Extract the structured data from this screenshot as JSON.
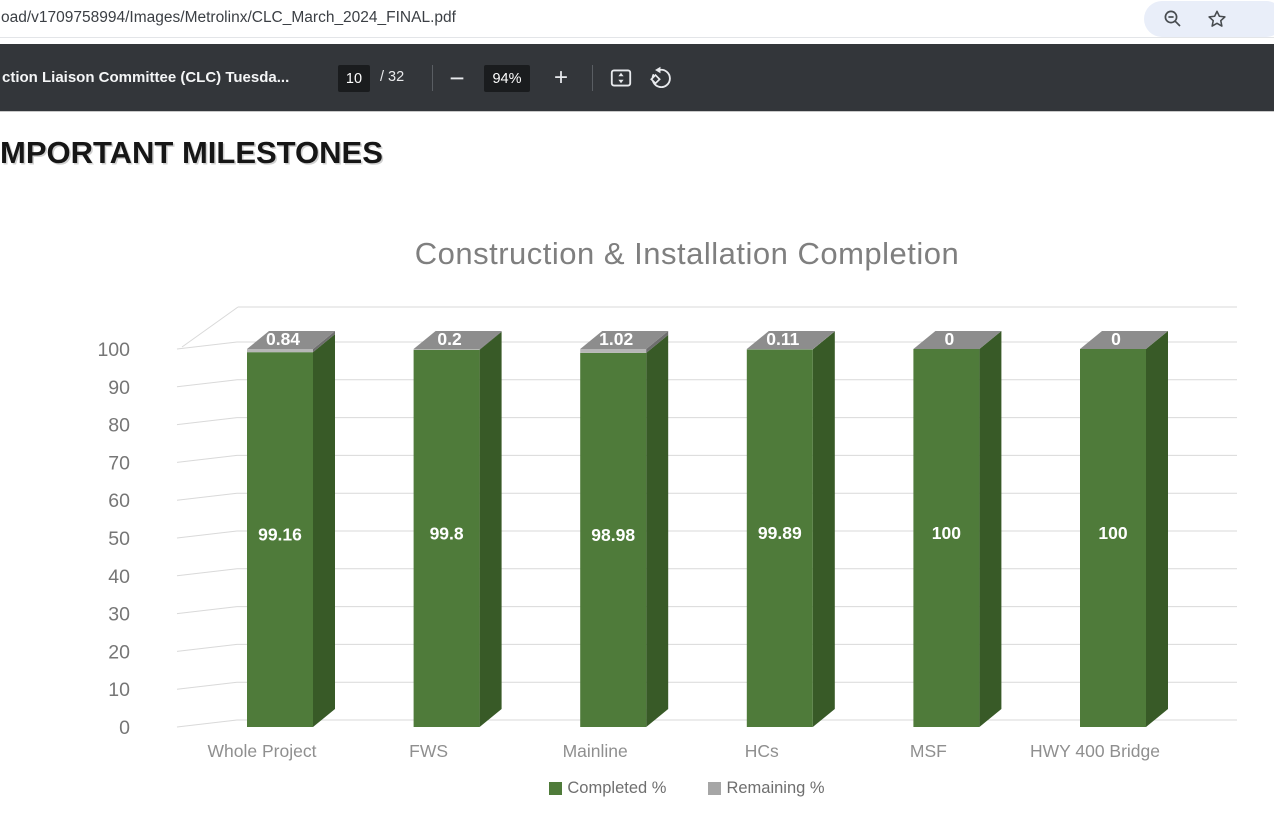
{
  "browser": {
    "url_text": "oad/v1709758994/Images/Metrolinx/CLC_March_2024_FINAL.pdf",
    "icons": [
      "zoom-out-icon",
      "bookmark-star-icon"
    ]
  },
  "pdf_toolbar": {
    "document_title": "ction Liaison Committee (CLC) Tuesda...",
    "page_current": "10",
    "page_total": "/ 32",
    "minus_label": "−",
    "zoom_level": "94%",
    "plus_label": "+",
    "icons": [
      "page-fit-icon",
      "rotate-ccw-icon"
    ]
  },
  "page": {
    "heading": "MPORTANT MILESTONES"
  },
  "chart_data": {
    "type": "bar",
    "variant": "3d-stacked-column",
    "title": "Construction & Installation Completion",
    "categories": [
      "Whole Project",
      "FWS",
      "Mainline",
      "HCs",
      "MSF",
      "HWY 400 Bridge"
    ],
    "series": [
      {
        "name": "Completed %",
        "color": "#4f7b3a",
        "values": [
          99.16,
          99.8,
          98.98,
          99.89,
          100,
          100
        ]
      },
      {
        "name": "Remaining %",
        "color": "#a6a6a6",
        "values": [
          0.84,
          0.2,
          1.02,
          0.11,
          0,
          0
        ]
      }
    ],
    "ylabel": "",
    "xlabel": "",
    "ylim": [
      0,
      100
    ],
    "ytick_step": 10,
    "grid": true,
    "legend_position": "bottom",
    "data_label_color": "#ffffff"
  },
  "colors": {
    "completed_front": "#4f7b3a",
    "completed_side": "#385a27",
    "remaining_front": "#b7b7b7",
    "remaining_side": "#6e6e6e",
    "remaining_top": "#8d8d8d",
    "gridline": "#d9d9d9",
    "tick_text": "#767676",
    "category_text": "#8f8f8f",
    "title_text": "#7f7f7f",
    "toolbar_bg": "#33363a",
    "legend_text": "#6f6f6f"
  }
}
